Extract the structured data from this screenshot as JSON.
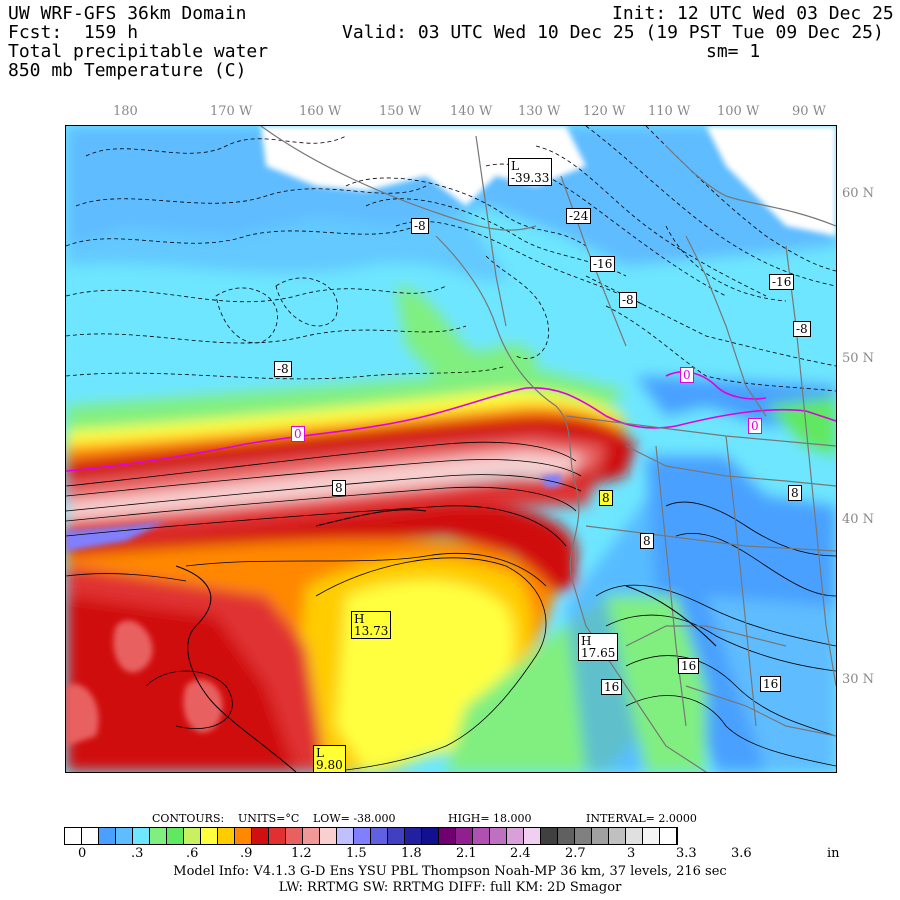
{
  "header": {
    "title": "UW WRF-GFS 36km Domain",
    "fcst": "Fcst:  159 h",
    "var1": "Total precipitable water",
    "var2": "850 mb Temperature (C)",
    "init": "Init: 12 UTC Wed 03 Dec 25",
    "valid": "Valid: 03 UTC Wed 10 Dec 25 (19 PST Tue 09 Dec 25)",
    "sm": "sm= 1"
  },
  "lon_labels": [
    "180",
    "170 W",
    "160 W",
    "150 W",
    "140 W",
    "130 W",
    "120 W",
    "110 W",
    "100 W",
    "90 W"
  ],
  "lat_labels": [
    "60 N",
    "50 N",
    "40 N",
    "30 N"
  ],
  "map_labels": {
    "low_north": "L\n-39.33",
    "m24": "-24",
    "m16a": "-16",
    "m16b": "-16",
    "m8a": "-8",
    "m8b": "-8",
    "m8c": "-8",
    "m8d": "-8",
    "z1": "0",
    "z2": "0",
    "z3": "0",
    "p8a": "8",
    "p8b": "8",
    "p8c": "8",
    "p8d": "8",
    "high_west": "H\n13.73",
    "high_east": "H\n17.65",
    "p16a": "16",
    "p16b": "16",
    "p16c": "16",
    "low_south": "L\n9.80"
  },
  "contours": {
    "title": "CONTOURS:",
    "units": "UNITS=°C",
    "low": "LOW= -38.000",
    "high": "HIGH= 18.000",
    "interval": "INTERVAL= 2.0000"
  },
  "colorbar": {
    "colors": [
      "#ffffff",
      "#ffffff",
      "#4aa0ff",
      "#5ebcff",
      "#6ee6ff",
      "#80ef80",
      "#60e860",
      "#c8f060",
      "#ffff40",
      "#ffcc00",
      "#ff8800",
      "#d01010",
      "#e03030",
      "#e86060",
      "#f09898",
      "#f8d0d0",
      "#c0c0ff",
      "#8080ff",
      "#6060e0",
      "#4040c0",
      "#2020a0",
      "#101090",
      "#700070",
      "#902090",
      "#b050b0",
      "#c070c0",
      "#d8a0d8",
      "#f0d0f0",
      "#404040",
      "#606060",
      "#808080",
      "#a0a0a0",
      "#c0c0c0",
      "#e0e0e0",
      "#f4f4f4",
      "#ffffff"
    ],
    "ticks": [
      "0",
      ".3",
      ".6",
      ".9",
      "1.2",
      "1.5",
      "1.8",
      "2.1",
      "2.4",
      "2.7",
      "3",
      "3.3",
      "3.6",
      "in"
    ]
  },
  "footer": {
    "line1": "Model Info: V4.1.3   G-D Ens YSU PBL  Thompson    Noah-MP  36 km,   37 levels,  216 sec",
    "line2": "LW: RRTMG SW: RRTMG   DIFF: full   KM: 2D Smagor"
  }
}
